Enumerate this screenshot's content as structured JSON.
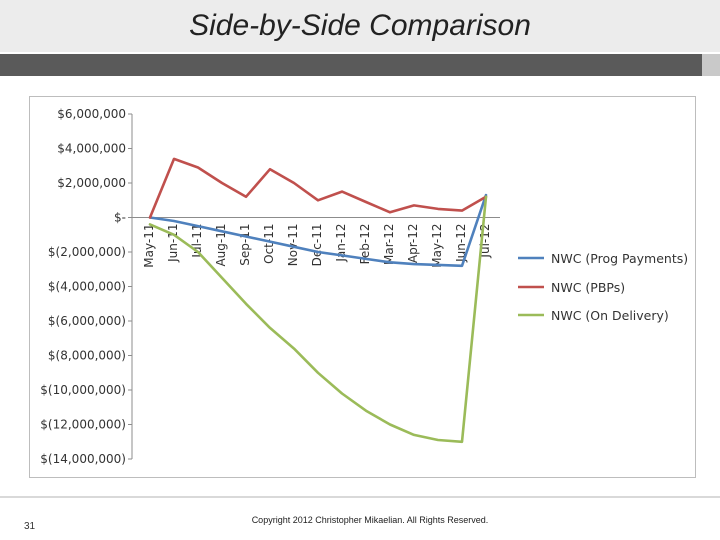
{
  "slide": {
    "title": "Side-by-Side Comparison",
    "page_number": "31",
    "copyright": "Copyright 2012 Christopher Mikaelian. All Rights Reserved."
  },
  "colors": {
    "title_band": "#ececec",
    "accent_band": "#5a5a5a",
    "prog_payments": "#4f81bd",
    "pbps": "#c0504d",
    "on_delivery": "#9bbb59"
  },
  "chart_data": {
    "type": "line",
    "title": "",
    "xlabel": "",
    "ylabel": "",
    "categories": [
      "May-11",
      "Jun-11",
      "Jul-11",
      "Aug-11",
      "Sep-11",
      "Oct-11",
      "Nov-11",
      "Dec-11",
      "Jan-12",
      "Feb-12",
      "Mar-12",
      "Apr-12",
      "May-12",
      "Jun-12",
      "Jul-12"
    ],
    "y_ticks": [
      6000000,
      4000000,
      2000000,
      0,
      -2000000,
      -4000000,
      -6000000,
      -8000000,
      -10000000,
      -12000000,
      -14000000
    ],
    "y_tick_labels": [
      "$6,000,000",
      "$4,000,000",
      "$2,000,000",
      "$-",
      "$(2,000,000)",
      "$(4,000,000)",
      "$(6,000,000)",
      "$(8,000,000)",
      "$(10,000,000)",
      "$(12,000,000)",
      "$(14,000,000)"
    ],
    "ylim": [
      -14000000,
      6000000
    ],
    "grid": false,
    "legend_position": "right",
    "series": [
      {
        "name": "NWC (Prog Payments)",
        "color": "#4f81bd",
        "values": [
          0,
          -200000,
          -500000,
          -800000,
          -1100000,
          -1400000,
          -1700000,
          -2000000,
          -2200000,
          -2400000,
          -2600000,
          -2700000,
          -2750000,
          -2800000,
          1300000
        ]
      },
      {
        "name": "NWC (PBPs)",
        "color": "#c0504d",
        "values": [
          0,
          3400000,
          2900000,
          2000000,
          1200000,
          2800000,
          2000000,
          1000000,
          1500000,
          900000,
          300000,
          700000,
          500000,
          400000,
          1200000
        ]
      },
      {
        "name": "NWC (On Delivery)",
        "color": "#9bbb59",
        "values": [
          -400000,
          -1000000,
          -2000000,
          -3500000,
          -5000000,
          -6400000,
          -7600000,
          -9000000,
          -10200000,
          -11200000,
          -12000000,
          -12600000,
          -12900000,
          -13000000,
          1200000
        ]
      }
    ]
  }
}
